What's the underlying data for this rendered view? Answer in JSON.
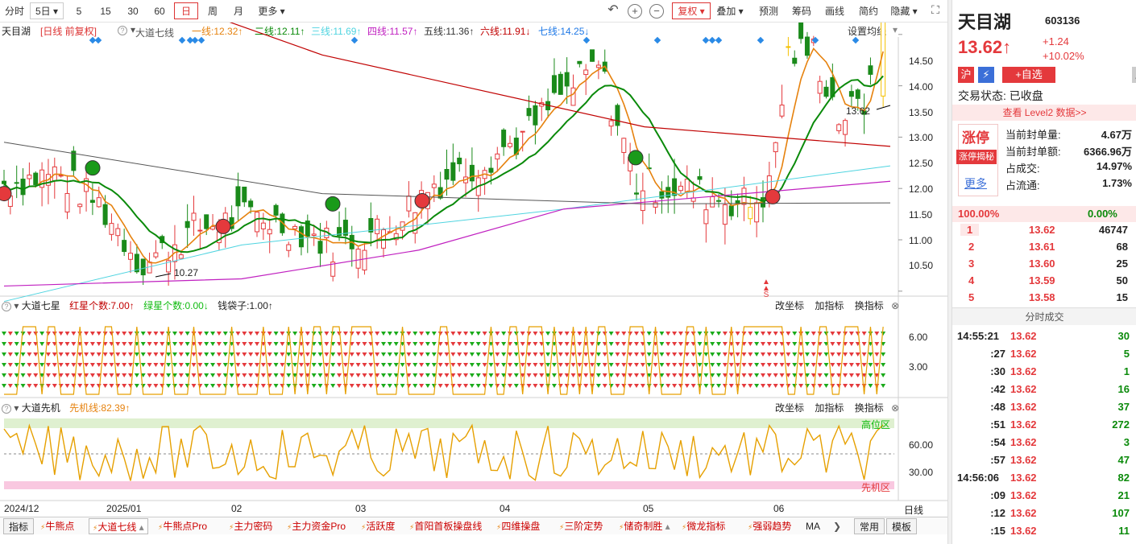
{
  "toolbar": {
    "periods": [
      "分时",
      "5日",
      "5",
      "15",
      "30",
      "60",
      "日",
      "周",
      "月",
      "更多"
    ],
    "active": "日",
    "right": [
      "复权",
      "叠加",
      "预测",
      "筹码",
      "画线",
      "简约",
      "隐藏"
    ]
  },
  "legend1": {
    "name": "天目湖",
    "mode": "[日线 前复权]",
    "indicator": "大道七线",
    "lines": [
      {
        "t": "一线:12.32↑",
        "c": "#e6820e"
      },
      {
        "t": "二线:12.11↑",
        "c": "#0a8a0a"
      },
      {
        "t": "三线:11.69↑",
        "c": "#4fd4e0"
      },
      {
        "t": "四线:11.57↑",
        "c": "#c020c0"
      },
      {
        "t": "五线:11.36↑",
        "c": "#333333"
      },
      {
        "t": "六线:11.91↓",
        "c": "#c00000"
      },
      {
        "t": "七线:14.25↓",
        "c": "#1e78e6"
      }
    ],
    "settings": "设置均线"
  },
  "price_axis": [
    "14.50",
    "14.00",
    "13.50",
    "13.00",
    "12.50",
    "12.00",
    "11.50",
    "11.00",
    "10.50"
  ],
  "annotations": {
    "high": "13.62",
    "low": "10.27",
    "signal": "S"
  },
  "panel2": {
    "name": "大道七星",
    "stats": [
      {
        "t": "红星个数:7.00↑",
        "c": "#c00000"
      },
      {
        "t": "绿星个数:0.00↓",
        "c": "#11bb11"
      },
      {
        "t": "钱袋子:1.00↑",
        "c": "#222222"
      }
    ],
    "buttons": [
      "改坐标",
      "加指标",
      "换指标"
    ],
    "axis": [
      "6.00",
      "3.00"
    ]
  },
  "panel3": {
    "name": "大道先机",
    "stat": "先机线:82.39↑",
    "buttons": [
      "改坐标",
      "加指标",
      "换指标"
    ],
    "axis": [
      "60.00",
      "30.00"
    ],
    "high_zone": "高位区",
    "low_zone": "先机区"
  },
  "time_axis": [
    "2024/12",
    "2025/01",
    "02",
    "03",
    "04",
    "05",
    "06"
  ],
  "time_mode": "日线",
  "bottom_tabs": [
    "指标",
    "牛熊点",
    "大道七线",
    "牛熊点Pro",
    "主力密码",
    "主力资金Pro",
    "活跃度",
    "首阳首板操盘线",
    "四维操盘",
    "三阶定势",
    "储奇制胜",
    "微龙指标",
    "强弱趋势",
    "MA",
    "常用",
    "模板"
  ],
  "stock": {
    "name": "天目湖",
    "code": "603136",
    "price": "13.62",
    "change": "+1.24",
    "pct": "+10.02%",
    "tags": [
      "沪",
      "⚡",
      "+自选"
    ],
    "status": "交易状态: 已收盘",
    "level2": "查看 Level2 数据>>"
  },
  "limit": {
    "title": "涨停",
    "button": "涨停揭秘",
    "more": "更多",
    "rows": [
      {
        "k": "当前封单量:",
        "v": "4.67万"
      },
      {
        "k": "当前封单额:",
        "v": "6366.96万"
      },
      {
        "k": "占成交:",
        "v": "14.97%"
      },
      {
        "k": "占流通:",
        "v": "1.73%"
      }
    ]
  },
  "ratio": {
    "left": "100.00%",
    "right": "0.00%"
  },
  "bids": [
    {
      "n": "1",
      "p": "13.62",
      "v": "46747"
    },
    {
      "n": "2",
      "p": "13.61",
      "v": "68"
    },
    {
      "n": "3",
      "p": "13.60",
      "v": "25"
    },
    {
      "n": "4",
      "p": "13.59",
      "v": "50"
    },
    {
      "n": "5",
      "p": "13.58",
      "v": "15"
    }
  ],
  "trades_title": "分时成交",
  "trades": [
    {
      "t": "14:55:21",
      "p": "13.62",
      "v": "30"
    },
    {
      "t": ":27",
      "p": "13.62",
      "v": "5"
    },
    {
      "t": ":30",
      "p": "13.62",
      "v": "1"
    },
    {
      "t": ":42",
      "p": "13.62",
      "v": "16"
    },
    {
      "t": ":48",
      "p": "13.62",
      "v": "37"
    },
    {
      "t": ":51",
      "p": "13.62",
      "v": "272"
    },
    {
      "t": ":54",
      "p": "13.62",
      "v": "3"
    },
    {
      "t": ":57",
      "p": "13.62",
      "v": "47"
    },
    {
      "t": "14:56:06",
      "p": "13.62",
      "v": "82"
    },
    {
      "t": ":09",
      "p": "13.62",
      "v": "21"
    },
    {
      "t": ":12",
      "p": "13.62",
      "v": "107"
    },
    {
      "t": ":15",
      "p": "13.62",
      "v": "11"
    }
  ],
  "colors": {
    "up": "#e4393c",
    "down": "#0a8a0a",
    "accent": "#d33"
  }
}
